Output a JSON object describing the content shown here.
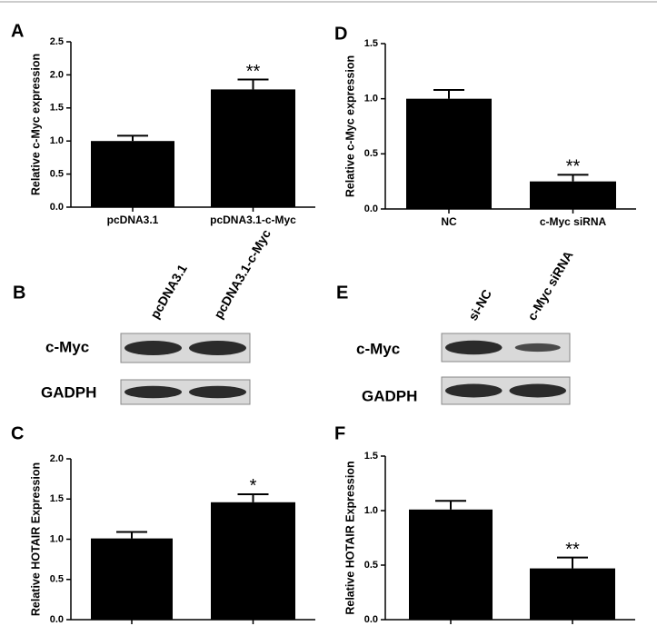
{
  "chart_data": [
    {
      "type": "bar",
      "panel": "A",
      "ylabel": "Relative c-Myc expression",
      "categories": [
        "pcDNA3.1",
        "pcDNA3.1-c-Myc"
      ],
      "values": [
        1.0,
        1.78
      ],
      "errors": [
        0.08,
        0.15
      ],
      "annotations": [
        null,
        "**"
      ],
      "color": "#000000",
      "ylim": [
        0,
        2.5
      ],
      "yticks": [
        {
          "value": 0,
          "label": "0.0"
        },
        0.5,
        {
          "value": 1,
          "label": "1.0"
        },
        1.5,
        {
          "value": 2,
          "label": "2.0"
        },
        2.5
      ]
    },
    {
      "type": "bar",
      "panel": "D",
      "ylabel": "Relative c-Myc expression",
      "categories": [
        "NC",
        "c-Myc siRNA"
      ],
      "values": [
        1.0,
        0.25
      ],
      "errors": [
        0.08,
        0.06
      ],
      "annotations": [
        null,
        "**"
      ],
      "color": "#000000",
      "ylim": [
        0,
        1.5
      ],
      "yticks": [
        {
          "value": 0,
          "label": "0.0"
        },
        0.5,
        {
          "value": 1,
          "label": "1.0"
        },
        1.5
      ]
    },
    {
      "type": "bar",
      "panel": "C",
      "ylabel": "Relative HOTAIR Expression",
      "categories": [
        null,
        null
      ],
      "values": [
        1.01,
        1.46
      ],
      "errors": [
        0.08,
        0.1
      ],
      "annotations": [
        null,
        "*"
      ],
      "color": "#000000",
      "ylim": [
        0,
        2
      ],
      "yticks": [
        {
          "value": 0,
          "label": "0.0"
        },
        0.5,
        {
          "value": 1,
          "label": "1.0"
        },
        1.5,
        {
          "value": 2,
          "label": "2.0"
        }
      ]
    },
    {
      "type": "bar",
      "panel": "F",
      "ylabel": "Relative HOTAIR Expression",
      "categories": [
        null,
        null
      ],
      "values": [
        1.01,
        0.47
      ],
      "errors": [
        0.08,
        0.1
      ],
      "annotations": [
        null,
        "**"
      ],
      "color": "#000000",
      "ylim": [
        0,
        1.5
      ],
      "yticks": [
        {
          "value": 0,
          "label": "0.0"
        },
        0.5,
        {
          "value": 1,
          "label": "1.0"
        },
        1.5
      ]
    }
  ],
  "blots": [
    {
      "panel": "B",
      "lanes": [
        "pcDNA3.1",
        "pcDNA3.1-c-Myc"
      ],
      "rows": [
        "c-Myc",
        "GADPH"
      ]
    },
    {
      "panel": "E",
      "lanes": [
        "si-NC",
        "c-Myc siRNA"
      ],
      "rows": [
        "c-Myc",
        "GADPH"
      ]
    }
  ]
}
